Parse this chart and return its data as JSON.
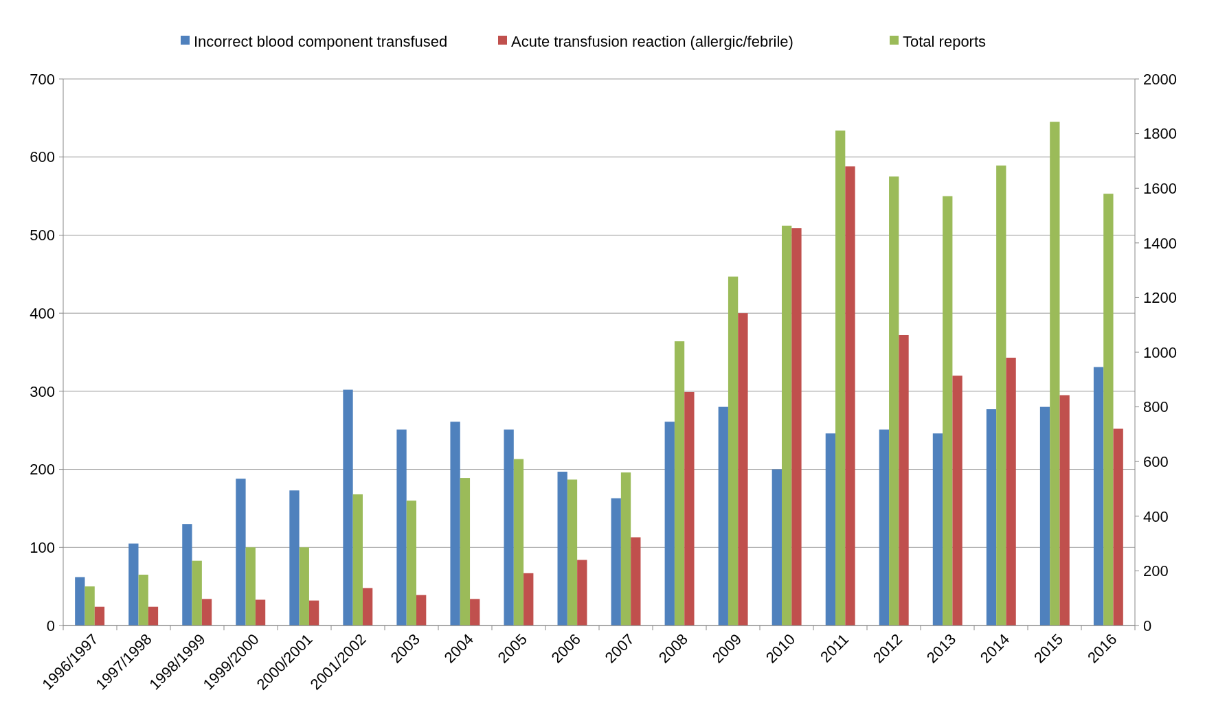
{
  "chart_data": {
    "type": "bar",
    "categories": [
      "1996/1997",
      "1997/1998",
      "1998/1999",
      "1999/2000",
      "2000/2001",
      "2001/2002",
      "2003",
      "2004",
      "2005",
      "2006",
      "2007",
      "2008",
      "2009",
      "2010",
      "2011",
      "2012",
      "2013",
      "2014",
      "2015",
      "2016"
    ],
    "series": [
      {
        "name": "Incorrect blood component transfused",
        "color": "#4f81bd",
        "values": [
          62,
          105,
          130,
          188,
          173,
          302,
          251,
          261,
          251,
          197,
          163,
          261,
          280,
          200,
          246,
          251,
          246,
          277,
          280,
          331
        ]
      },
      {
        "name": "Acute transfusion reaction (allergic/febrile)",
        "color": "#c0504d",
        "values": [
          24,
          24,
          34,
          33,
          32,
          48,
          39,
          34,
          67,
          84,
          113,
          299,
          400,
          509,
          588,
          372,
          320,
          343,
          295,
          252
        ]
      },
      {
        "name": "Total reports",
        "color": "#9bbb59",
        "axis": "y2",
        "values": [
          143,
          186,
          237,
          286,
          286,
          480,
          457,
          540,
          609,
          534,
          560,
          1040,
          1277,
          1463,
          1811,
          1643,
          1571,
          1683,
          1843,
          1580
        ]
      }
    ],
    "ylim": [
      0,
      700
    ],
    "yticks": [
      0,
      100,
      200,
      300,
      400,
      500,
      600,
      700
    ],
    "y2lim": [
      0,
      2000
    ],
    "y2ticks": [
      0,
      200,
      400,
      600,
      800,
      1000,
      1200,
      1400,
      1600,
      1800,
      2000
    ],
    "grid": "y",
    "legend": "top"
  }
}
